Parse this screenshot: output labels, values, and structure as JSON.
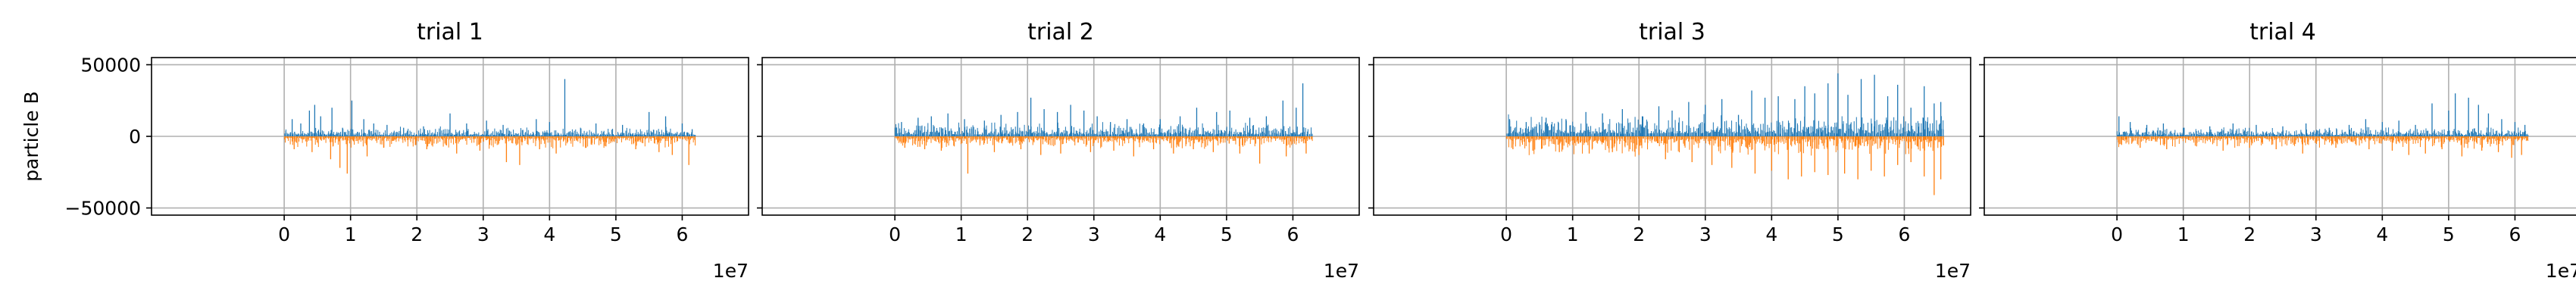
{
  "figure": {
    "ylabel": "particle B",
    "offset_text": "1e7"
  },
  "chart_data": [
    {
      "type": "bar",
      "title": "trial 1",
      "ylabel": "particle B",
      "xlim": [
        -20000000,
        70000000
      ],
      "ylim": [
        -55000,
        55000
      ],
      "xticks": [
        0,
        10000000,
        20000000,
        30000000,
        40000000,
        50000000,
        60000000
      ],
      "xtick_labels": [
        "0",
        "1",
        "2",
        "3",
        "4",
        "5",
        "6"
      ],
      "yticks": [
        -50000,
        0,
        50000
      ],
      "ytick_labels": [
        "−50000",
        "0",
        "50000"
      ],
      "x_offset_label": "1e7",
      "grid": true,
      "x_extent": [
        0,
        62000000
      ],
      "series": [
        {
          "color": "#1f77b4",
          "direction": "up",
          "values": [
            [
              1200000,
              12000
            ],
            [
              2500000,
              9000
            ],
            [
              3800000,
              18000
            ],
            [
              4600000,
              22000
            ],
            [
              5500000,
              14000
            ],
            [
              7200000,
              20000
            ],
            [
              8800000,
              6000
            ],
            [
              10200000,
              25000
            ],
            [
              12000000,
              12000
            ],
            [
              13500000,
              9000
            ],
            [
              15500000,
              8000
            ],
            [
              18000000,
              6000
            ],
            [
              21000000,
              7000
            ],
            [
              25000000,
              16000
            ],
            [
              27500000,
              9000
            ],
            [
              30500000,
              11000
            ],
            [
              33000000,
              8000
            ],
            [
              38000000,
              12000
            ],
            [
              40000000,
              10000
            ],
            [
              42300000,
              40000
            ],
            [
              47000000,
              9000
            ],
            [
              51000000,
              8000
            ],
            [
              55000000,
              17000
            ],
            [
              57500000,
              14000
            ],
            [
              60000000,
              9000
            ],
            [
              61500000,
              5000
            ]
          ],
          "envelope": 4000
        },
        {
          "color": "#ff7f0e",
          "direction": "down",
          "values": [
            [
              1500000,
              -9000
            ],
            [
              4200000,
              -11000
            ],
            [
              7000000,
              -16000
            ],
            [
              8400000,
              -22000
            ],
            [
              9500000,
              -26000
            ],
            [
              12500000,
              -14000
            ],
            [
              15000000,
              -8000
            ],
            [
              21500000,
              -9000
            ],
            [
              26000000,
              -12000
            ],
            [
              29500000,
              -10000
            ],
            [
              33500000,
              -18000
            ],
            [
              35500000,
              -20000
            ],
            [
              38500000,
              -9000
            ],
            [
              41000000,
              -12000
            ],
            [
              45500000,
              -8000
            ],
            [
              48500000,
              -7000
            ],
            [
              53000000,
              -9000
            ],
            [
              56500000,
              -11000
            ],
            [
              58500000,
              -13000
            ],
            [
              61000000,
              -20000
            ]
          ],
          "envelope": -5000
        }
      ]
    },
    {
      "type": "bar",
      "title": "trial 2",
      "xlim": [
        -20000000,
        70000000
      ],
      "ylim": [
        -55000,
        55000
      ],
      "xticks": [
        0,
        10000000,
        20000000,
        30000000,
        40000000,
        50000000,
        60000000
      ],
      "xtick_labels": [
        "0",
        "1",
        "2",
        "3",
        "4",
        "5",
        "6"
      ],
      "x_offset_label": "1e7",
      "grid": true,
      "x_extent": [
        0,
        63000000
      ],
      "series": [
        {
          "color": "#1f77b4",
          "direction": "up",
          "values": [
            [
              1000000,
              10000
            ],
            [
              3500000,
              13000
            ],
            [
              5500000,
              14000
            ],
            [
              8000000,
              16000
            ],
            [
              10500000,
              12000
            ],
            [
              13500000,
              11000
            ],
            [
              16000000,
              15000
            ],
            [
              18500000,
              17000
            ],
            [
              20500000,
              27000
            ],
            [
              22500000,
              19000
            ],
            [
              24500000,
              17000
            ],
            [
              26500000,
              22000
            ],
            [
              28500000,
              18000
            ],
            [
              30500000,
              14000
            ],
            [
              32500000,
              10000
            ],
            [
              35000000,
              12000
            ],
            [
              37500000,
              9000
            ],
            [
              40000000,
              12000
            ],
            [
              43000000,
              14000
            ],
            [
              45500000,
              20000
            ],
            [
              48500000,
              17000
            ],
            [
              50500000,
              18000
            ],
            [
              53500000,
              13000
            ],
            [
              56000000,
              14000
            ],
            [
              58500000,
              25000
            ],
            [
              60500000,
              20000
            ],
            [
              61500000,
              37000
            ]
          ],
          "envelope": 6000
        },
        {
          "color": "#ff7f0e",
          "direction": "down",
          "values": [
            [
              1500000,
              -8000
            ],
            [
              4500000,
              -9000
            ],
            [
              7000000,
              -10000
            ],
            [
              11000000,
              -26000
            ],
            [
              15000000,
              -11000
            ],
            [
              19000000,
              -9000
            ],
            [
              22000000,
              -13000
            ],
            [
              25000000,
              -12000
            ],
            [
              29500000,
              -11000
            ],
            [
              33000000,
              -10000
            ],
            [
              36000000,
              -14000
            ],
            [
              39000000,
              -9000
            ],
            [
              42000000,
              -12000
            ],
            [
              45000000,
              -9000
            ],
            [
              48000000,
              -11000
            ],
            [
              52000000,
              -12000
            ],
            [
              55000000,
              -19000
            ],
            [
              59000000,
              -14000
            ],
            [
              62000000,
              -12000
            ]
          ],
          "envelope": -5000
        }
      ]
    },
    {
      "type": "bar",
      "title": "trial 3",
      "xlim": [
        -20000000,
        70000000
      ],
      "ylim": [
        -55000,
        55000
      ],
      "xticks": [
        0,
        10000000,
        20000000,
        30000000,
        40000000,
        50000000,
        60000000
      ],
      "xtick_labels": [
        "0",
        "1",
        "2",
        "3",
        "4",
        "5",
        "6"
      ],
      "x_offset_label": "1e7",
      "grid": true,
      "x_extent": [
        0,
        66000000
      ],
      "series": [
        {
          "color": "#1f77b4",
          "direction": "up",
          "values": [
            [
              500000,
              12000
            ],
            [
              3000000,
              10000
            ],
            [
              6000000,
              13000
            ],
            [
              9000000,
              12000
            ],
            [
              12000000,
              17000
            ],
            [
              14500000,
              16000
            ],
            [
              17500000,
              19000
            ],
            [
              20500000,
              14000
            ],
            [
              23000000,
              21000
            ],
            [
              25000000,
              18000
            ],
            [
              27500000,
              24000
            ],
            [
              30000000,
              22000
            ],
            [
              32500000,
              26000
            ],
            [
              35000000,
              15000
            ],
            [
              37000000,
              32000
            ],
            [
              39000000,
              27000
            ],
            [
              41000000,
              28000
            ],
            [
              43500000,
              26000
            ],
            [
              45000000,
              35000
            ],
            [
              46500000,
              30000
            ],
            [
              48500000,
              37000
            ],
            [
              50000000,
              44000
            ],
            [
              51500000,
              29000
            ],
            [
              53500000,
              40000
            ],
            [
              55500000,
              43000
            ],
            [
              57500000,
              28000
            ],
            [
              59000000,
              36000
            ],
            [
              61000000,
              20000
            ],
            [
              63000000,
              35000
            ],
            [
              64500000,
              23000
            ],
            [
              65500000,
              24000
            ]
          ],
          "envelope": 9000
        },
        {
          "color": "#ff7f0e",
          "direction": "down",
          "values": [
            [
              1000000,
              -9000
            ],
            [
              4000000,
              -10000
            ],
            [
              8000000,
              -11000
            ],
            [
              12500000,
              -12000
            ],
            [
              16000000,
              -11000
            ],
            [
              20000000,
              -13000
            ],
            [
              24000000,
              -16000
            ],
            [
              28000000,
              -18000
            ],
            [
              31000000,
              -20000
            ],
            [
              34000000,
              -22000
            ],
            [
              37500000,
              -26000
            ],
            [
              40000000,
              -24000
            ],
            [
              42500000,
              -30000
            ],
            [
              44500000,
              -28000
            ],
            [
              46500000,
              -25000
            ],
            [
              48500000,
              -27000
            ],
            [
              51000000,
              -26000
            ],
            [
              53000000,
              -30000
            ],
            [
              55000000,
              -24000
            ],
            [
              57000000,
              -28000
            ],
            [
              59000000,
              -20000
            ],
            [
              61000000,
              -18000
            ],
            [
              63000000,
              -28000
            ],
            [
              64500000,
              -41000
            ],
            [
              65500000,
              -30000
            ]
          ],
          "envelope": -8000
        }
      ]
    },
    {
      "type": "bar",
      "title": "trial 4",
      "xlim": [
        -20000000,
        70000000
      ],
      "ylim": [
        -55000,
        55000
      ],
      "xticks": [
        0,
        10000000,
        20000000,
        30000000,
        40000000,
        50000000,
        60000000
      ],
      "xtick_labels": [
        "0",
        "1",
        "2",
        "3",
        "4",
        "5",
        "6"
      ],
      "x_offset_label": "1e7",
      "grid": true,
      "x_extent": [
        0,
        62000000
      ],
      "series": [
        {
          "color": "#1f77b4",
          "direction": "up",
          "values": [
            [
              300000,
              14000
            ],
            [
              2000000,
              10000
            ],
            [
              4500000,
              8000
            ],
            [
              7000000,
              9000
            ],
            [
              10000000,
              6000
            ],
            [
              14000000,
              7000
            ],
            [
              17500000,
              9000
            ],
            [
              21000000,
              8000
            ],
            [
              25000000,
              7000
            ],
            [
              28500000,
              9000
            ],
            [
              32000000,
              6000
            ],
            [
              35000000,
              8000
            ],
            [
              37500000,
              12000
            ],
            [
              40000000,
              10000
            ],
            [
              42500000,
              11000
            ],
            [
              45000000,
              8000
            ],
            [
              47500000,
              23000
            ],
            [
              50000000,
              18000
            ],
            [
              51000000,
              30000
            ],
            [
              53000000,
              27000
            ],
            [
              54500000,
              22000
            ],
            [
              56000000,
              16000
            ],
            [
              58000000,
              12000
            ],
            [
              60000000,
              10000
            ],
            [
              61500000,
              8000
            ]
          ],
          "envelope": 4000
        },
        {
          "color": "#ff7f0e",
          "direction": "down",
          "values": [
            [
              700000,
              -6000
            ],
            [
              3500000,
              -8000
            ],
            [
              7500000,
              -9000
            ],
            [
              12000000,
              -7000
            ],
            [
              16000000,
              -10000
            ],
            [
              20000000,
              -8000
            ],
            [
              24000000,
              -9000
            ],
            [
              28000000,
              -12000
            ],
            [
              33000000,
              -8000
            ],
            [
              38000000,
              -9000
            ],
            [
              41500000,
              -10000
            ],
            [
              44000000,
              -13000
            ],
            [
              46500000,
              -12000
            ],
            [
              49000000,
              -9000
            ],
            [
              52000000,
              -14000
            ],
            [
              55000000,
              -10000
            ],
            [
              57500000,
              -11000
            ],
            [
              59500000,
              -15000
            ],
            [
              61000000,
              -13000
            ]
          ],
          "envelope": -5000
        }
      ]
    }
  ]
}
